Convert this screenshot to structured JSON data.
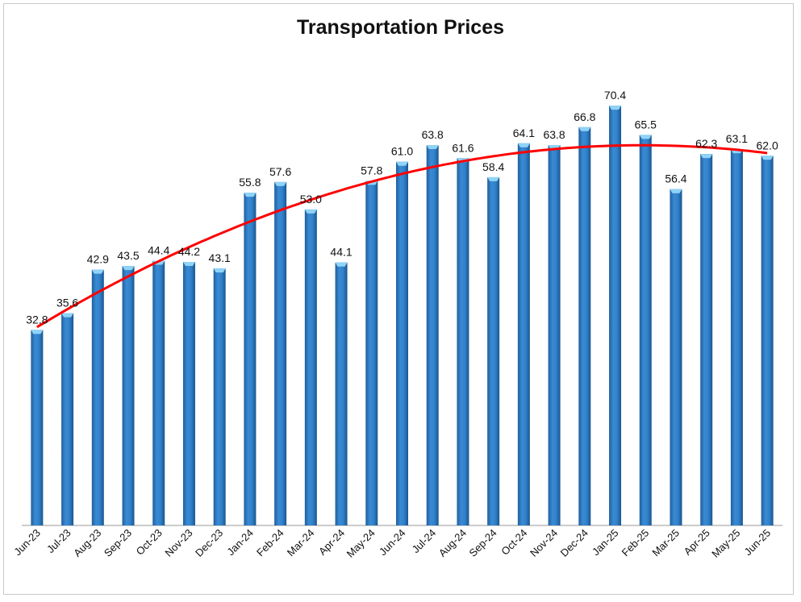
{
  "chart_data": {
    "type": "bar",
    "title": "Transportation Prices",
    "xlabel": "",
    "ylabel": "",
    "ylim": [
      0,
      72
    ],
    "grid": false,
    "legend": "none",
    "categories": [
      "Jun-23",
      "Jul-23",
      "Aug-23",
      "Sep-23",
      "Oct-23",
      "Nov-23",
      "Dec-23",
      "Jan-24",
      "Feb-24",
      "Mar-24",
      "Apr-24",
      "May-24",
      "Jun-24",
      "Jul-24",
      "Aug-24",
      "Sep-24",
      "Oct-24",
      "Nov-24",
      "Dec-24",
      "Jan-25",
      "Feb-25",
      "Mar-25",
      "Apr-25",
      "May-25",
      "Jun-25"
    ],
    "values": [
      32.8,
      35.6,
      42.9,
      43.5,
      44.4,
      44.2,
      43.1,
      55.8,
      57.6,
      53.0,
      44.1,
      57.8,
      61.0,
      63.8,
      61.6,
      58.4,
      64.1,
      63.8,
      66.8,
      70.4,
      65.5,
      56.4,
      62.3,
      63.1,
      62.0
    ],
    "data_labels": [
      "32.8",
      "35.6",
      "42.9",
      "43.5",
      "44.4",
      "44.2",
      "43.1",
      "55.8",
      "57.6",
      "53.0",
      "44.1",
      "57.8",
      "61.0",
      "63.8",
      "61.6",
      "58.4",
      "64.1",
      "63.8",
      "66.8",
      "70.4",
      "65.5",
      "56.4",
      "62.3",
      "63.1",
      "62.0"
    ],
    "trendline": {
      "type": "polynomial",
      "degree": 2,
      "color": "#ff0000"
    },
    "colors": {
      "bar": "#2f7fc8",
      "bar_dark": "#1d5d9b",
      "bar_top": "#8fd3f7",
      "axis": "#9a9a9a"
    }
  }
}
